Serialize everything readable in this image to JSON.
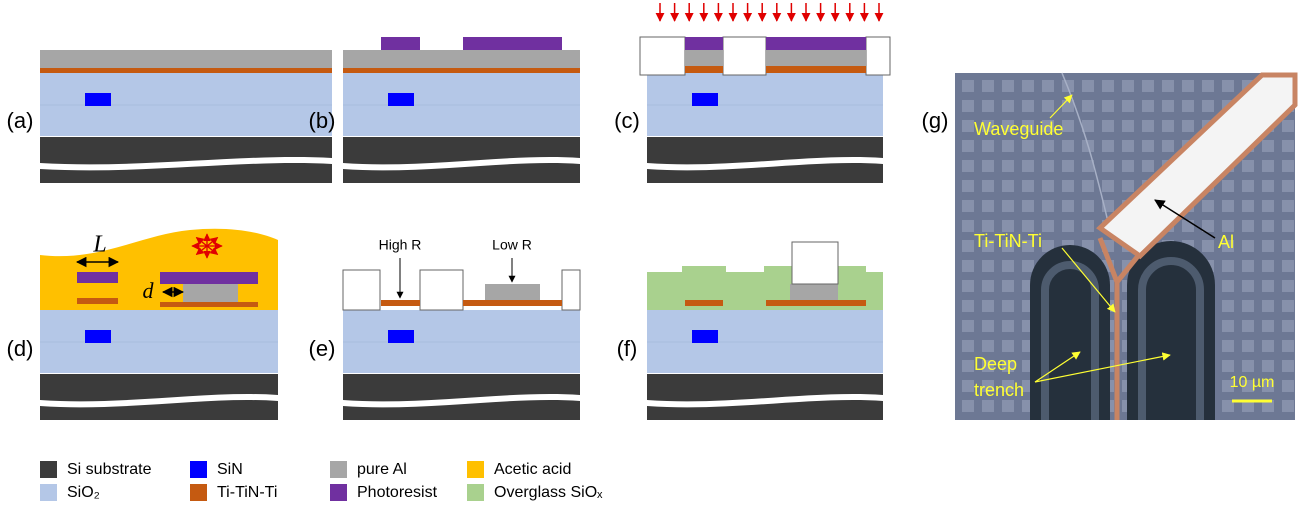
{
  "panels": [
    "(a)",
    "(b)",
    "(c)",
    "(d)",
    "(e)",
    "(f)",
    "(g)"
  ],
  "annotations": {
    "length": "L",
    "distance": "d",
    "high_r": "High R",
    "low_r": "Low R"
  },
  "micrograph": {
    "waveguide": "Waveguide",
    "al": "Al",
    "ti_tin_ti": "Ti-TiN-Ti",
    "deep_trench": [
      "Deep",
      "trench"
    ],
    "scale": "10 µm"
  },
  "legend": [
    {
      "label": "Si substrate",
      "color": "#3b3b3b"
    },
    {
      "label": "SiN",
      "color": "#0000ff"
    },
    {
      "label": "pure Al",
      "color": "#a6a6a6"
    },
    {
      "label": "Acetic acid",
      "color": "#ffc000"
    },
    {
      "label": "SiO₂",
      "color": "#b4c7e7"
    },
    {
      "label": "Ti-TiN-Ti",
      "color": "#c55a11"
    },
    {
      "label": "Photoresist",
      "color": "#7030a0"
    },
    {
      "label": "Overglass SiOₓ",
      "color": "#a9d18e"
    }
  ]
}
